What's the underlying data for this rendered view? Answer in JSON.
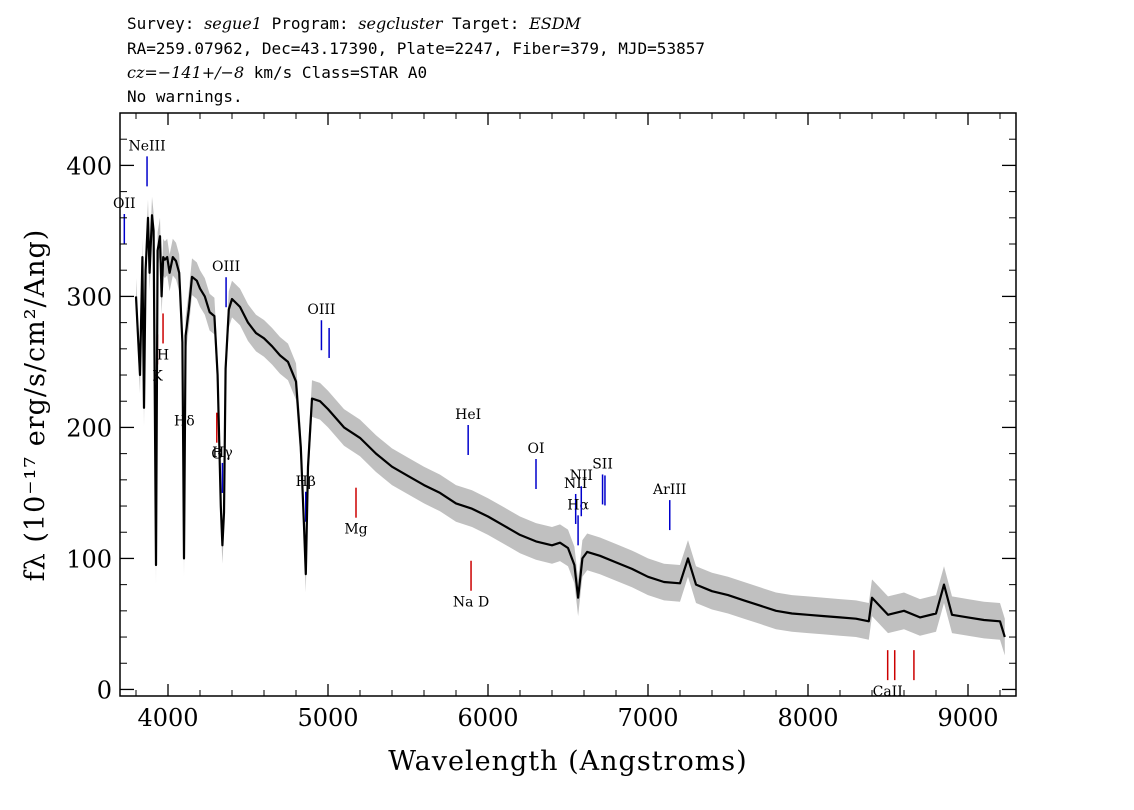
{
  "header": {
    "survey_label": "Survey:",
    "survey": "segue1",
    "program_label": "Program:",
    "program": "segcluster",
    "target_label": "Target:",
    "target": "ESDM",
    "line2": "RA=259.07962, Dec=43.17390, Plate=2247, Fiber=379, MJD=53857",
    "cz_label": "cz=",
    "cz_value": "−141+/−8",
    "cz_rest": " km/s Class=STAR A0",
    "line4": "No warnings."
  },
  "chart_data": {
    "type": "line",
    "xlabel": "Wavelength (Angstroms)",
    "ylabel": "fλ (10⁻¹⁷ erg/s/cm²/Ang)",
    "xlim": [
      3700,
      9300
    ],
    "ylim": [
      -5,
      440
    ],
    "x_ticks": [
      4000,
      5000,
      6000,
      7000,
      8000,
      9000
    ],
    "y_ticks": [
      0,
      100,
      200,
      300,
      400
    ],
    "grid": false,
    "colors": {
      "spectrum": "#000000",
      "error_band": "#c0c0c0",
      "emission_marker": "#0000cc",
      "absorption_marker": "#cc0000"
    },
    "series": [
      {
        "x": [
          3800,
          3825,
          3840,
          3850,
          3860,
          3875,
          3885,
          3900,
          3910,
          3925,
          3935,
          3950,
          3960,
          3970,
          3980,
          3995,
          4010,
          4030,
          4050,
          4070,
          4090,
          4100,
          4110,
          4130,
          4150,
          4180,
          4200,
          4230,
          4260,
          4290,
          4310,
          4330,
          4340,
          4350,
          4360,
          4380,
          4400,
          4450,
          4500,
          4550,
          4600,
          4650,
          4700,
          4750,
          4800,
          4830,
          4850,
          4861,
          4875,
          4900,
          4950,
          5000,
          5100,
          5200,
          5300,
          5400,
          5500,
          5600,
          5700,
          5800,
          5900,
          6000,
          6100,
          6200,
          6300,
          6400,
          6450,
          6500,
          6540,
          6563,
          6590,
          6620,
          6700,
          6800,
          6900,
          7000,
          7100,
          7200,
          7250,
          7300,
          7400,
          7500,
          7600,
          7700,
          7800,
          7900,
          8000,
          8100,
          8200,
          8300,
          8380,
          8400,
          8500,
          8600,
          8700,
          8800,
          8850,
          8900,
          9000,
          9100,
          9200,
          9230
        ],
        "y": [
          300,
          240,
          330,
          215,
          320,
          360,
          318,
          362,
          350,
          95,
          335,
          346,
          300,
          330,
          328,
          330,
          318,
          330,
          327,
          318,
          265,
          100,
          270,
          290,
          315,
          312,
          306,
          300,
          288,
          285,
          240,
          140,
          110,
          135,
          245,
          290,
          298,
          292,
          280,
          272,
          268,
          262,
          255,
          250,
          235,
          185,
          125,
          88,
          170,
          222,
          220,
          214,
          200,
          192,
          180,
          170,
          163,
          156,
          150,
          142,
          138,
          132,
          125,
          118,
          113,
          110,
          112,
          108,
          95,
          70,
          100,
          105,
          102,
          97,
          92,
          86,
          82,
          81,
          100,
          80,
          75,
          72,
          68,
          64,
          60,
          58,
          57,
          56,
          55,
          54,
          52,
          70,
          57,
          60,
          55,
          58,
          80,
          57,
          55,
          53,
          52,
          40
        ]
      }
    ],
    "emission_lines": [
      {
        "label": "OII",
        "x": 3727
      },
      {
        "label": "NeIII",
        "x": 3869
      },
      {
        "label": "Hδ",
        "x": 4102
      },
      {
        "label": "Hγ",
        "x": 4340
      },
      {
        "label": "OIII",
        "x": 4363
      },
      {
        "label": "Hβ",
        "x": 4861
      },
      {
        "label": "OIII",
        "x": 4959
      },
      {
        "label": "",
        "x": 5007
      },
      {
        "label": "HeI",
        "x": 5876
      },
      {
        "label": "OI",
        "x": 6300
      },
      {
        "label": "NII",
        "x": 6548
      },
      {
        "label": "Hα",
        "x": 6563
      },
      {
        "label": "NII",
        "x": 6583
      },
      {
        "label": "SII",
        "x": 6716
      },
      {
        "label": "",
        "x": 6731
      },
      {
        "label": "ArIII",
        "x": 7136
      }
    ],
    "absorption_lines": [
      {
        "label": "K",
        "x": 3934
      },
      {
        "label": "H",
        "x": 3969
      },
      {
        "label": "G",
        "x": 4305
      },
      {
        "label": "Mg",
        "x": 5175
      },
      {
        "label": "Na D",
        "x": 5894
      },
      {
        "label": "CaII",
        "x": 8498
      },
      {
        "label": "",
        "x": 8542
      },
      {
        "label": "",
        "x": 8662
      }
    ]
  }
}
